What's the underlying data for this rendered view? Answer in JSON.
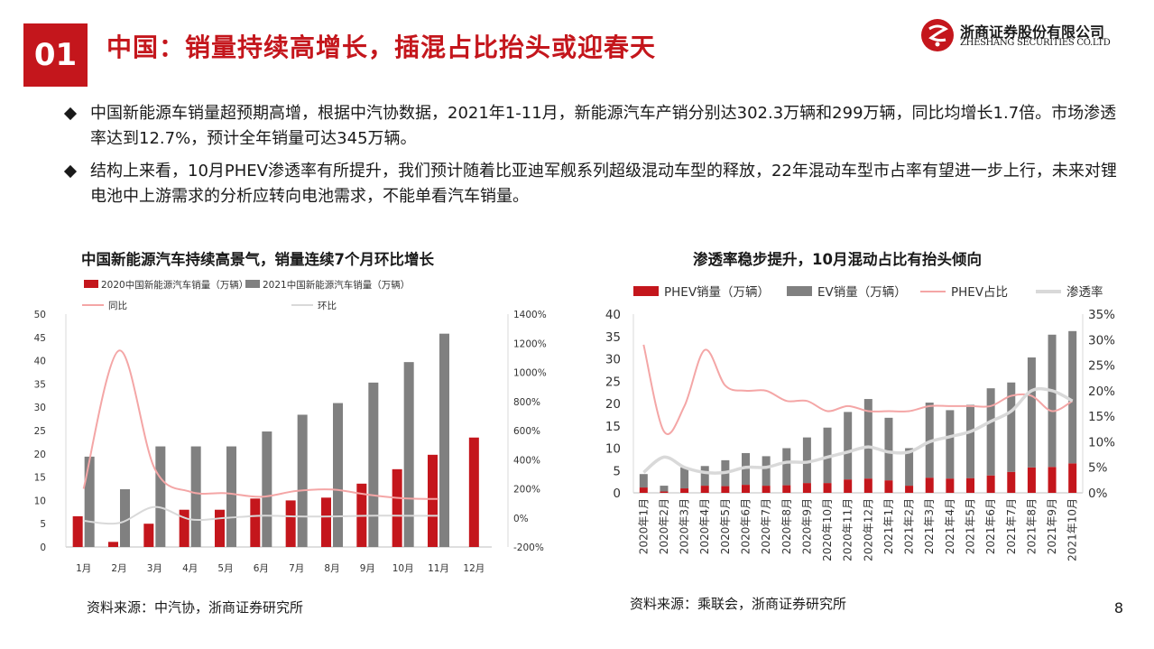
{
  "header": {
    "section_number": "01",
    "title": "中国：销量持续高增长，插混占比抬头或迎春天",
    "logo_cn": "浙商证券股份有限公司",
    "logo_en": "ZHESHANG SECURITIES CO.LTD"
  },
  "bullets": [
    "中国新能源车销量超预期高增，根据中汽协数据，2021年1-11月，新能源汽车产销分别达302.3万辆和299万辆，同比均增长1.7倍。市场渗透率达到12.7%，预计全年销量可达345万辆。",
    "结构上来看，10月PHEV渗透率有所提升，我们预计随着比亚迪军舰系列超级混动车型的释放，22年混动车型市占率有望进一步上行，未来对锂电池中上游需求的分析应转向电池需求，不能单看汽车销量。"
  ],
  "left_chart": {
    "title": "中国新能源汽车持续高景气，销量连续7个月环比增长",
    "source": "资料来源：中汽协，浙商证券研究所"
  },
  "right_chart": {
    "title": "渗透率稳步提升，10月混动占比有抬头倾向",
    "source": "资料来源：乘联会，浙商证券研究所"
  },
  "page_number": "8",
  "colors": {
    "brand_red": "#c4161c",
    "bar_gray": "#7f7f7f",
    "line_pink": "#f4a6a6",
    "line_light": "#d9d9d9"
  },
  "chart_data": [
    {
      "type": "bar",
      "categories": [
        "1月",
        "2月",
        "3月",
        "4月",
        "5月",
        "6月",
        "7月",
        "8月",
        "9月",
        "10月",
        "11月",
        "12月"
      ],
      "series": [
        {
          "name": "2020中国新能源汽车销量（万辆）",
          "kind": "bar",
          "axis": "left",
          "values": [
            6.6,
            1.1,
            5.0,
            8.0,
            8.0,
            10.4,
            10.0,
            10.6,
            13.6,
            16.7,
            19.8,
            23.5
          ]
        },
        {
          "name": "2021中国新能源汽车销量（万辆）",
          "kind": "bar",
          "axis": "left",
          "values": [
            19.4,
            12.4,
            21.6,
            21.6,
            21.6,
            24.8,
            28.4,
            30.9,
            35.3,
            39.7,
            45.8,
            null
          ]
        },
        {
          "name": "同比",
          "kind": "line",
          "axis": "right",
          "values": [
            200,
            1150,
            340,
            180,
            170,
            145,
            185,
            195,
            160,
            135,
            130,
            null
          ]
        },
        {
          "name": "环比",
          "kind": "line",
          "axis": "right",
          "values": [
            -20,
            -35,
            75,
            -10,
            0,
            15,
            10,
            10,
            15,
            15,
            15,
            null
          ]
        }
      ],
      "y_left": {
        "min": 0,
        "max": 50,
        "ticks": [
          0,
          5,
          10,
          15,
          20,
          25,
          30,
          35,
          40,
          45,
          50
        ]
      },
      "y_right": {
        "min": -200,
        "max": 1400,
        "ticks": [
          "-200%",
          "0%",
          "200%",
          "400%",
          "600%",
          "800%",
          "1000%",
          "1200%",
          "1400%"
        ]
      },
      "legend": "top"
    },
    {
      "type": "bar",
      "categories": [
        "2020年1月",
        "2020年2月",
        "2020年3月",
        "2020年4月",
        "2020年5月",
        "2020年6月",
        "2020年7月",
        "2020年8月",
        "2020年9月",
        "2020年10月",
        "2020年11月",
        "2020年12月",
        "2021年1月",
        "2021年2月",
        "2021年3月",
        "2021年4月",
        "2021年5月",
        "2021年6月",
        "2021年7月",
        "2021年8月",
        "2021年9月",
        "2021年10月"
      ],
      "series": [
        {
          "name": "PHEV销量（万辆）",
          "kind": "stacked-bar",
          "axis": "left",
          "values": [
            1.2,
            0.3,
            1.0,
            1.6,
            1.5,
            1.8,
            1.6,
            1.7,
            2.2,
            2.2,
            3.0,
            3.2,
            2.8,
            1.6,
            3.4,
            3.2,
            3.3,
            3.9,
            4.7,
            5.7,
            5.8,
            6.6
          ]
        },
        {
          "name": "EV销量（万辆）",
          "kind": "stacked-bar",
          "axis": "left",
          "values": [
            3.0,
            1.3,
            4.7,
            4.4,
            5.8,
            7.1,
            6.6,
            8.3,
            10.2,
            12.4,
            15.1,
            17.8,
            14.0,
            8.4,
            16.8,
            15.3,
            16.4,
            19.5,
            20.0,
            24.6,
            29.6,
            29.6
          ]
        },
        {
          "name": "PHEV占比",
          "kind": "line",
          "axis": "right",
          "values": [
            29,
            12,
            17,
            28,
            21,
            20,
            20,
            18,
            18,
            16,
            17,
            16,
            16,
            16,
            17,
            17,
            17,
            17,
            19,
            19,
            16,
            18
          ]
        },
        {
          "name": "渗透率",
          "kind": "line",
          "axis": "right",
          "values": [
            4,
            7,
            5,
            4,
            4,
            5,
            5,
            6,
            6,
            7,
            8,
            9,
            8,
            8,
            10,
            11,
            12,
            14,
            16,
            20,
            20,
            18
          ]
        }
      ],
      "y_left": {
        "min": 0,
        "max": 40,
        "ticks": [
          0,
          5,
          10,
          15,
          20,
          25,
          30,
          35,
          40
        ]
      },
      "y_right": {
        "min": 0,
        "max": 35,
        "ticks": [
          "0%",
          "5%",
          "10%",
          "15%",
          "20%",
          "25%",
          "30%",
          "35%"
        ]
      },
      "legend": "top"
    }
  ]
}
